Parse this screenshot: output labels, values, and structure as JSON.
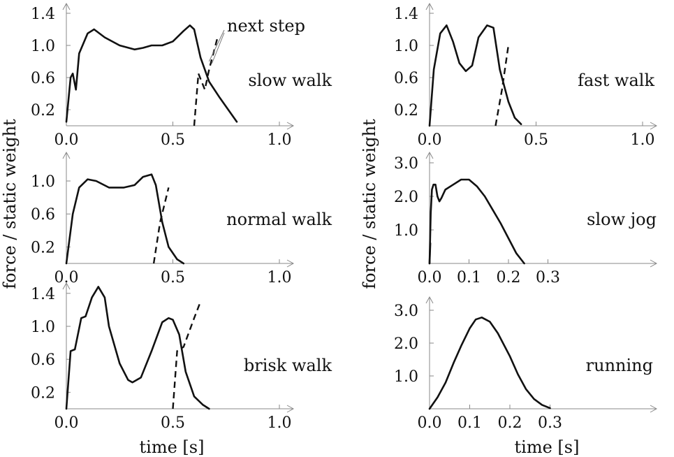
{
  "chart_data": [
    {
      "type": "line",
      "title": "slow walk",
      "xlim": [
        0,
        1.05
      ],
      "ylim": [
        0,
        1.45
      ],
      "xticks": [
        {
          "v": 0,
          "label": "0.0"
        },
        {
          "v": 0.5,
          "label": "0.5"
        },
        {
          "v": 1.0,
          "label": "1.0"
        }
      ],
      "yticks": [
        {
          "v": 0.2,
          "label": "0.2"
        },
        {
          "v": 0.6,
          "label": "0.6"
        },
        {
          "v": 1.0,
          "label": "1.0"
        },
        {
          "v": 1.4,
          "label": "1.4"
        }
      ],
      "series": [
        {
          "style": "solid",
          "points": [
            [
              0,
              0.05
            ],
            [
              0.02,
              0.6
            ],
            [
              0.03,
              0.65
            ],
            [
              0.045,
              0.45
            ],
            [
              0.06,
              0.9
            ],
            [
              0.1,
              1.15
            ],
            [
              0.13,
              1.2
            ],
            [
              0.18,
              1.1
            ],
            [
              0.25,
              1.0
            ],
            [
              0.32,
              0.95
            ],
            [
              0.36,
              0.97
            ],
            [
              0.4,
              1.0
            ],
            [
              0.45,
              1.0
            ],
            [
              0.5,
              1.05
            ],
            [
              0.55,
              1.18
            ],
            [
              0.58,
              1.25
            ],
            [
              0.6,
              1.2
            ],
            [
              0.63,
              0.85
            ],
            [
              0.67,
              0.55
            ],
            [
              0.72,
              0.35
            ],
            [
              0.76,
              0.2
            ],
            [
              0.8,
              0.05
            ]
          ]
        },
        {
          "style": "dashed",
          "points": [
            [
              0.6,
              0.0
            ],
            [
              0.62,
              0.65
            ],
            [
              0.65,
              0.45
            ],
            [
              0.67,
              0.7
            ],
            [
              0.71,
              1.1
            ]
          ]
        }
      ],
      "annotations": [
        {
          "text": "next step",
          "target": [
            0.67,
            0.8
          ]
        }
      ]
    },
    {
      "type": "line",
      "title": "fast walk",
      "xlim": [
        0,
        1.05
      ],
      "ylim": [
        0,
        1.45
      ],
      "xticks": [
        {
          "v": 0,
          "label": "0.0"
        },
        {
          "v": 0.5,
          "label": "0.5"
        },
        {
          "v": 1.0,
          "label": "1.0"
        }
      ],
      "yticks": [
        {
          "v": 0.2,
          "label": "0.2"
        },
        {
          "v": 0.6,
          "label": "0.6"
        },
        {
          "v": 1.0,
          "label": "1.0"
        },
        {
          "v": 1.4,
          "label": "1.4"
        }
      ],
      "series": [
        {
          "style": "solid",
          "points": [
            [
              0,
              0.0
            ],
            [
              0.02,
              0.7
            ],
            [
              0.05,
              1.15
            ],
            [
              0.08,
              1.25
            ],
            [
              0.11,
              1.05
            ],
            [
              0.14,
              0.78
            ],
            [
              0.17,
              0.68
            ],
            [
              0.2,
              0.75
            ],
            [
              0.23,
              1.1
            ],
            [
              0.27,
              1.25
            ],
            [
              0.3,
              1.22
            ],
            [
              0.33,
              0.7
            ],
            [
              0.37,
              0.3
            ],
            [
              0.4,
              0.1
            ],
            [
              0.43,
              0.02
            ]
          ]
        },
        {
          "style": "dashed",
          "points": [
            [
              0.31,
              0.0
            ],
            [
              0.34,
              0.45
            ],
            [
              0.37,
              1.0
            ]
          ]
        }
      ]
    },
    {
      "type": "line",
      "title": "normal walk",
      "xlim": [
        0,
        1.05
      ],
      "ylim": [
        0,
        1.25
      ],
      "xticks": [
        {
          "v": 0,
          "label": "0.0"
        },
        {
          "v": 0.5,
          "label": "0.5"
        },
        {
          "v": 1.0,
          "label": "1.0"
        }
      ],
      "yticks": [
        {
          "v": 0.2,
          "label": "0.2"
        },
        {
          "v": 0.6,
          "label": "0.6"
        },
        {
          "v": 1.0,
          "label": "1.0"
        }
      ],
      "series": [
        {
          "style": "solid",
          "points": [
            [
              0,
              0.0
            ],
            [
              0.03,
              0.6
            ],
            [
              0.06,
              0.92
            ],
            [
              0.1,
              1.02
            ],
            [
              0.14,
              1.0
            ],
            [
              0.2,
              0.92
            ],
            [
              0.27,
              0.92
            ],
            [
              0.32,
              0.95
            ],
            [
              0.36,
              1.05
            ],
            [
              0.4,
              1.08
            ],
            [
              0.42,
              0.95
            ],
            [
              0.45,
              0.5
            ],
            [
              0.48,
              0.2
            ],
            [
              0.52,
              0.05
            ],
            [
              0.55,
              0.0
            ]
          ]
        },
        {
          "style": "dashed",
          "points": [
            [
              0.41,
              0.0
            ],
            [
              0.44,
              0.5
            ],
            [
              0.48,
              0.92
            ]
          ]
        }
      ]
    },
    {
      "type": "line",
      "title": "slow jog",
      "xlim": [
        0,
        0.4
      ],
      "ylim": [
        0,
        3.3
      ],
      "xticks": [
        {
          "v": 0,
          "label": "0.0"
        },
        {
          "v": 0.1,
          "label": "0.1"
        },
        {
          "v": 0.2,
          "label": "0.2"
        },
        {
          "v": 0.3,
          "label": "0.3"
        }
      ],
      "yticks": [
        {
          "v": 1.0,
          "label": "1.0"
        },
        {
          "v": 2.0,
          "label": "2.0"
        },
        {
          "v": 3.0,
          "label": "3.0"
        }
      ],
      "series": [
        {
          "style": "solid",
          "points": [
            [
              0,
              0.0
            ],
            [
              0.003,
              1.5
            ],
            [
              0.006,
              2.2
            ],
            [
              0.01,
              2.35
            ],
            [
              0.015,
              2.35
            ],
            [
              0.02,
              2.0
            ],
            [
              0.025,
              1.85
            ],
            [
              0.03,
              1.95
            ],
            [
              0.04,
              2.2
            ],
            [
              0.06,
              2.35
            ],
            [
              0.08,
              2.5
            ],
            [
              0.1,
              2.5
            ],
            [
              0.12,
              2.3
            ],
            [
              0.14,
              2.0
            ],
            [
              0.16,
              1.6
            ],
            [
              0.18,
              1.2
            ],
            [
              0.2,
              0.75
            ],
            [
              0.22,
              0.3
            ],
            [
              0.24,
              0.0
            ]
          ]
        },
        {
          "style": "solid",
          "points": [
            [
              0,
              0.0
            ],
            [
              0.002,
              0.6
            ]
          ]
        }
      ]
    },
    {
      "type": "line",
      "title": "brisk walk",
      "xlim": [
        0,
        1.05
      ],
      "ylim": [
        0,
        1.55
      ],
      "xticks": [
        {
          "v": 0,
          "label": "0.0"
        },
        {
          "v": 0.5,
          "label": "0.5"
        },
        {
          "v": 1.0,
          "label": "1.0"
        }
      ],
      "yticks": [
        {
          "v": 0.2,
          "label": "0.2"
        },
        {
          "v": 0.6,
          "label": "0.6"
        },
        {
          "v": 1.0,
          "label": "1.0"
        },
        {
          "v": 1.4,
          "label": "1.4"
        }
      ],
      "series": [
        {
          "style": "solid",
          "points": [
            [
              0,
              0.0
            ],
            [
              0.02,
              0.7
            ],
            [
              0.04,
              0.72
            ],
            [
              0.07,
              1.1
            ],
            [
              0.09,
              1.12
            ],
            [
              0.12,
              1.35
            ],
            [
              0.15,
              1.48
            ],
            [
              0.18,
              1.35
            ],
            [
              0.2,
              1.0
            ],
            [
              0.25,
              0.55
            ],
            [
              0.29,
              0.35
            ],
            [
              0.31,
              0.32
            ],
            [
              0.35,
              0.38
            ],
            [
              0.4,
              0.7
            ],
            [
              0.45,
              1.05
            ],
            [
              0.48,
              1.1
            ],
            [
              0.5,
              1.08
            ],
            [
              0.53,
              0.9
            ],
            [
              0.56,
              0.45
            ],
            [
              0.6,
              0.15
            ],
            [
              0.64,
              0.05
            ],
            [
              0.67,
              0.0
            ]
          ]
        },
        {
          "style": "dashed",
          "points": [
            [
              0.5,
              0.0
            ],
            [
              0.52,
              0.7
            ],
            [
              0.55,
              0.75
            ],
            [
              0.6,
              1.1
            ],
            [
              0.63,
              1.3
            ]
          ]
        }
      ]
    },
    {
      "type": "line",
      "title": "running",
      "xlim": [
        0,
        0.4
      ],
      "ylim": [
        0,
        3.3
      ],
      "xticks": [
        {
          "v": 0,
          "label": "0.0"
        },
        {
          "v": 0.1,
          "label": "0.1"
        },
        {
          "v": 0.2,
          "label": "0.2"
        },
        {
          "v": 0.3,
          "label": "0.3"
        }
      ],
      "yticks": [
        {
          "v": 1.0,
          "label": "1.0"
        },
        {
          "v": 2.0,
          "label": "2.0"
        },
        {
          "v": 3.0,
          "label": "3.0"
        }
      ],
      "series": [
        {
          "style": "solid",
          "points": [
            [
              0,
              0.0
            ],
            [
              0.02,
              0.35
            ],
            [
              0.04,
              0.8
            ],
            [
              0.06,
              1.4
            ],
            [
              0.08,
              1.95
            ],
            [
              0.1,
              2.45
            ],
            [
              0.115,
              2.72
            ],
            [
              0.13,
              2.78
            ],
            [
              0.15,
              2.65
            ],
            [
              0.17,
              2.3
            ],
            [
              0.2,
              1.6
            ],
            [
              0.22,
              1.05
            ],
            [
              0.24,
              0.6
            ],
            [
              0.26,
              0.3
            ],
            [
              0.28,
              0.12
            ],
            [
              0.3,
              0.02
            ]
          ]
        }
      ]
    }
  ],
  "axes": {
    "ylabel": "force / static weight",
    "xlabel": "time [s]"
  }
}
